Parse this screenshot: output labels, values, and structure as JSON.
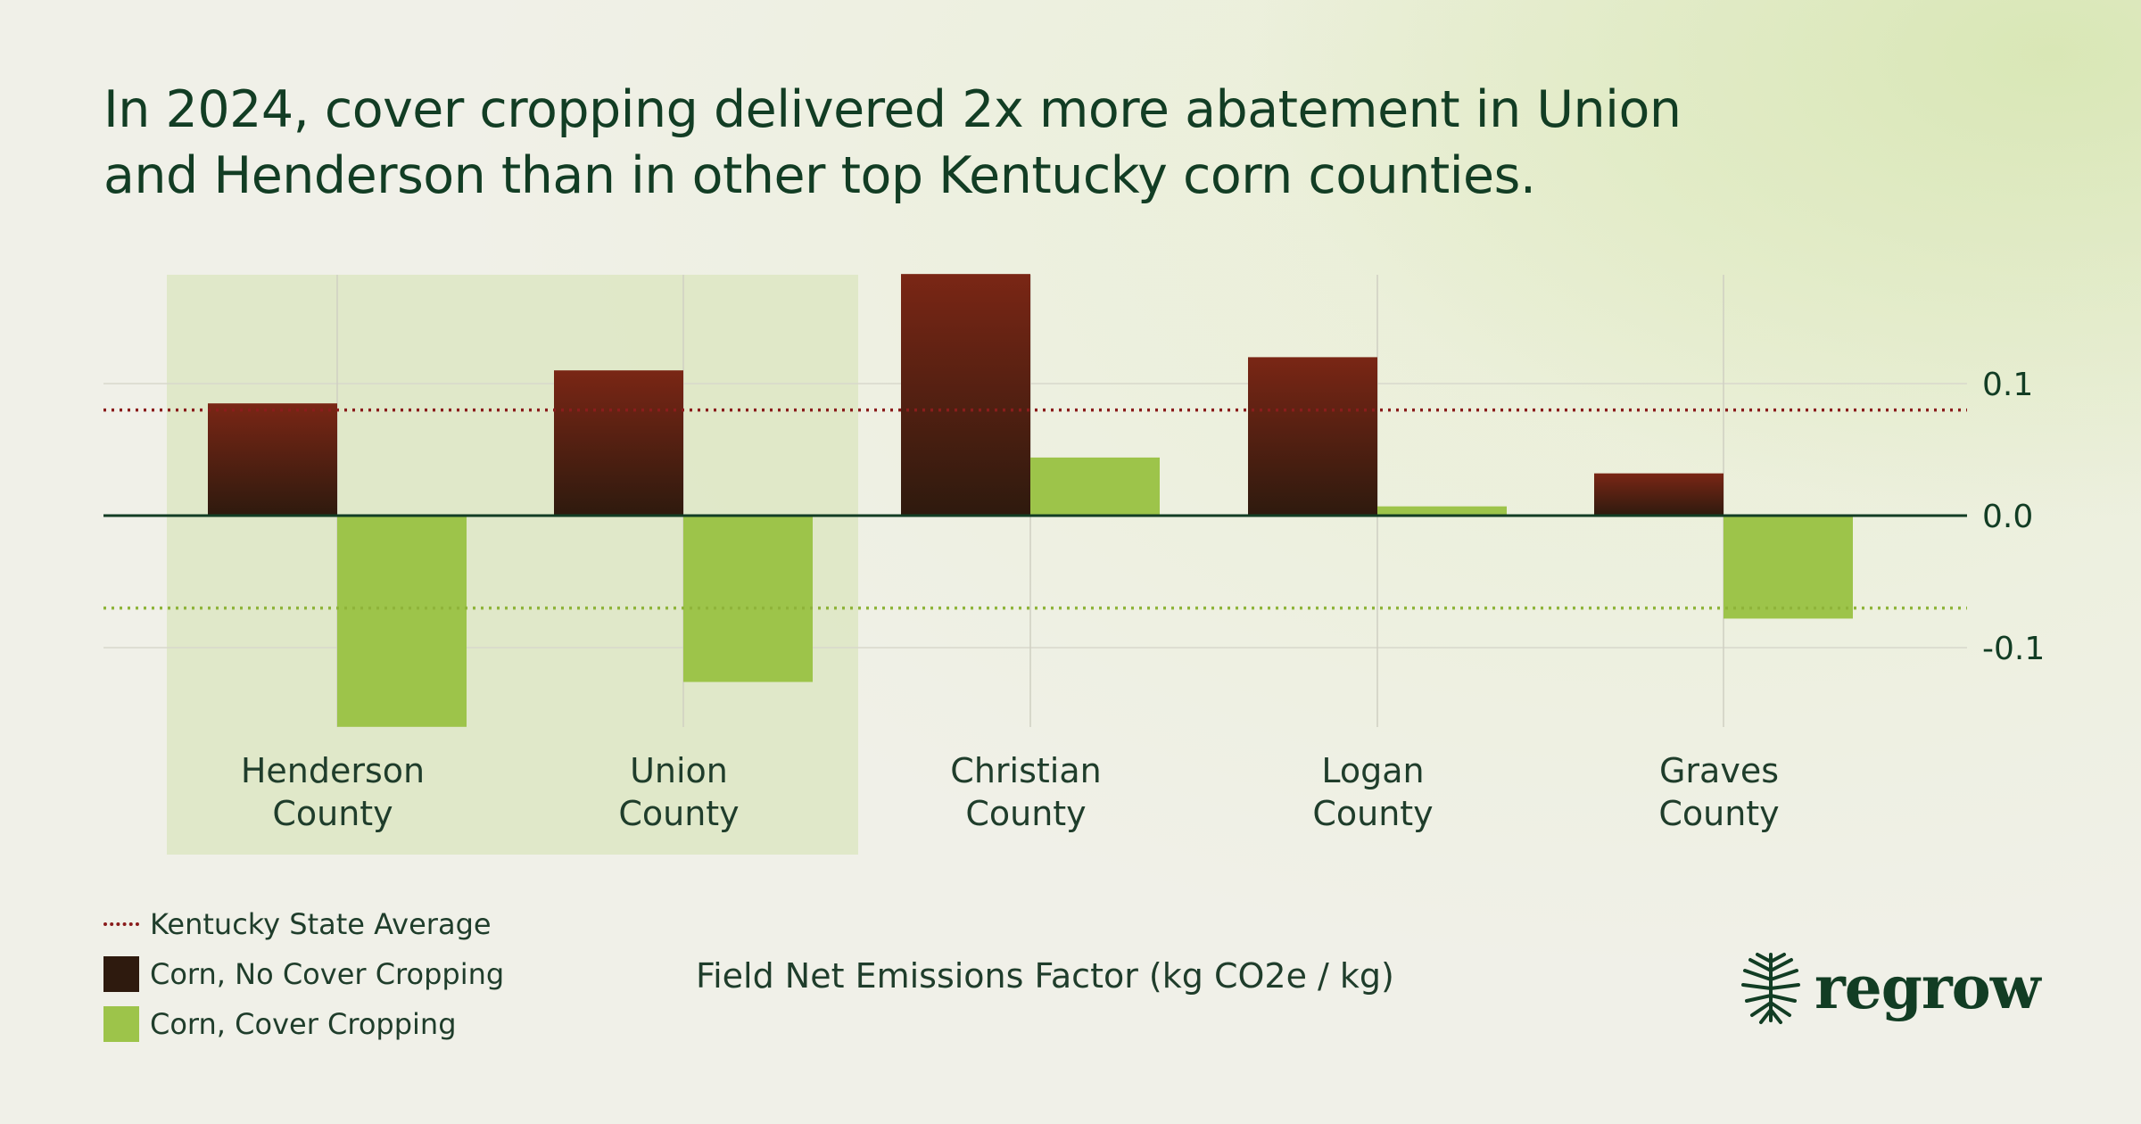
{
  "title_lines": [
    "In 2024, cover cropping delivered 2x more abatement in Union",
    "and Henderson than in other top Kentucky corn counties."
  ],
  "legend": {
    "avg_label": "Kentucky State Average",
    "no_cover_label": "Corn, No Cover Cropping",
    "cover_label": "Corn, Cover Cropping"
  },
  "logo": {
    "word": "regrow",
    "icon": "tree-roots-icon"
  },
  "colors": {
    "no_cover_top": "#7a2615",
    "no_cover_bottom": "#2e1a0e",
    "cover": "#9dc44a",
    "avg_no_cover_line": "#8a1c1c",
    "avg_cover_line": "#8fb43a",
    "highlight": "#dde6c3",
    "text": "#123d24"
  },
  "chart_data": {
    "type": "bar",
    "categories": [
      [
        "Henderson",
        "County"
      ],
      [
        "Union",
        "County"
      ],
      [
        "Christian",
        "County"
      ],
      [
        "Logan",
        "County"
      ],
      [
        "Graves",
        "County"
      ]
    ],
    "series": [
      {
        "name": "Corn, No Cover Cropping",
        "values": [
          0.085,
          0.11,
          0.183,
          0.12,
          0.032
        ]
      },
      {
        "name": "Corn, Cover Cropping",
        "values": [
          -0.16,
          -0.126,
          0.044,
          0.007,
          -0.078
        ]
      }
    ],
    "reference_lines": [
      {
        "name": "Kentucky State Average",
        "series": "Corn, No Cover Cropping",
        "value": 0.08
      },
      {
        "name": "Kentucky State Average",
        "series": "Corn, Cover Cropping",
        "value": -0.07
      }
    ],
    "highlighted_categories": [
      "Henderson",
      "Union"
    ],
    "y_ticks": [
      {
        "value": 0.1,
        "label": "0.1"
      },
      {
        "value": 0.0,
        "label": "0.0"
      },
      {
        "value": -0.1,
        "label": "-0.1"
      }
    ],
    "xlabel": "Field Net Emissions Factor (kg CO2e / kg)",
    "ylim": [
      -0.16,
      0.183
    ],
    "grid": true,
    "legend_position": "bottom-left"
  }
}
